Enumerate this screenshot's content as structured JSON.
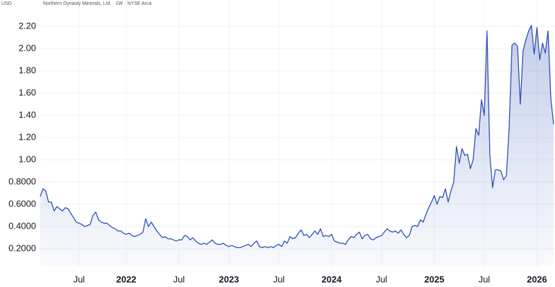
{
  "chart_data": {
    "type": "area",
    "title": "Northern Dynasty Minerals, Ltd. · 1W · NYSE Arca",
    "y_label": "USD",
    "grid": true,
    "categories": [
      null,
      null,
      null,
      null,
      null,
      null,
      null,
      null,
      null,
      null,
      null,
      null,
      null,
      null,
      "Jul",
      null,
      null,
      null,
      null,
      null,
      null,
      null,
      null,
      null,
      null,
      null,
      null,
      null,
      null,
      null,
      null,
      "2022",
      null,
      null,
      null,
      null,
      null,
      null,
      null,
      null,
      null,
      null,
      null,
      null,
      null,
      null,
      null,
      null,
      null,
      null,
      "Jul",
      null,
      null,
      null,
      null,
      null,
      null,
      null,
      null,
      null,
      null,
      null,
      null,
      null,
      null,
      null,
      null,
      null,
      "2023",
      null,
      null,
      null,
      null,
      null,
      null,
      null,
      null,
      null,
      null,
      null,
      null,
      null,
      null,
      null,
      null,
      null,
      "Jul",
      null,
      null,
      null,
      null,
      null,
      null,
      null,
      null,
      null,
      null,
      null,
      null,
      null,
      null,
      null,
      null,
      null,
      null,
      "2024",
      null,
      null,
      null,
      null,
      null,
      null,
      null,
      null,
      null,
      null,
      null,
      null,
      null,
      null,
      null,
      null,
      null,
      "Jul",
      null,
      null,
      null,
      null,
      null,
      null,
      null,
      null,
      null,
      null,
      null,
      null,
      null,
      null,
      null,
      null,
      null,
      null,
      "2025",
      null,
      null,
      null,
      null,
      null,
      null,
      null,
      null,
      null,
      null,
      null,
      null,
      null,
      null,
      null,
      null,
      null,
      "Jul",
      null,
      null,
      null,
      null,
      null,
      null,
      null,
      null,
      null,
      null,
      null,
      null,
      null,
      null,
      null,
      null,
      null,
      null,
      "2026",
      null,
      null,
      null,
      null,
      null,
      null
    ],
    "series": [
      {
        "name": "Northern Dynasty Minerals",
        "color": "#2a4fb5",
        "values": [
          0.67,
          0.74,
          0.72,
          0.62,
          0.62,
          0.54,
          0.58,
          0.56,
          0.54,
          0.57,
          0.56,
          0.52,
          0.48,
          0.44,
          0.43,
          0.42,
          0.4,
          0.41,
          0.42,
          0.5,
          0.53,
          0.46,
          0.44,
          0.43,
          0.43,
          0.41,
          0.39,
          0.38,
          0.36,
          0.36,
          0.34,
          0.33,
          0.34,
          0.32,
          0.31,
          0.32,
          0.33,
          0.35,
          0.47,
          0.4,
          0.44,
          0.4,
          0.36,
          0.33,
          0.3,
          0.31,
          0.29,
          0.29,
          0.28,
          0.27,
          0.28,
          0.28,
          0.32,
          0.31,
          0.28,
          0.3,
          0.27,
          0.25,
          0.24,
          0.25,
          0.24,
          0.26,
          0.28,
          0.25,
          0.24,
          0.24,
          0.25,
          0.23,
          0.22,
          0.23,
          0.22,
          0.21,
          0.21,
          0.22,
          0.23,
          0.24,
          0.22,
          0.25,
          0.27,
          0.22,
          0.21,
          0.22,
          0.21,
          0.22,
          0.21,
          0.23,
          0.24,
          0.22,
          0.27,
          0.25,
          0.31,
          0.29,
          0.3,
          0.34,
          0.37,
          0.32,
          0.33,
          0.3,
          0.33,
          0.36,
          0.33,
          0.38,
          0.31,
          0.32,
          0.31,
          0.33,
          0.27,
          0.26,
          0.25,
          0.25,
          0.24,
          0.28,
          0.31,
          0.3,
          0.33,
          0.35,
          0.29,
          0.32,
          0.33,
          0.29,
          0.28,
          0.3,
          0.31,
          0.32,
          0.35,
          0.38,
          0.36,
          0.35,
          0.36,
          0.34,
          0.37,
          0.33,
          0.3,
          0.32,
          0.4,
          0.41,
          0.4,
          0.46,
          0.44,
          0.51,
          0.57,
          0.62,
          0.68,
          0.6,
          0.67,
          0.66,
          0.74,
          0.62,
          0.72,
          0.8,
          1.12,
          0.97,
          1.1,
          1.04,
          1.05,
          0.92,
          1.0,
          1.28,
          1.22,
          1.54,
          1.4,
          2.16,
          1.05,
          0.75,
          0.91,
          0.91,
          0.9,
          0.82,
          0.86,
          1.3,
          2.03,
          2.05,
          2.02,
          1.5,
          1.98,
          2.08,
          2.16,
          2.21,
          1.95,
          2.19,
          1.9,
          2.05,
          1.96,
          2.16,
          1.55,
          1.32
        ]
      }
    ],
    "ylim": [
      0.05,
      2.35
    ],
    "yticks": [
      {
        "value": 0.2,
        "label": "0.2000"
      },
      {
        "value": 0.4,
        "label": "0.4000"
      },
      {
        "value": 0.6,
        "label": "0.6000"
      },
      {
        "value": 0.8,
        "label": "0.8000"
      },
      {
        "value": 1.0,
        "label": "1.00"
      },
      {
        "value": 1.2,
        "label": "1.20"
      },
      {
        "value": 1.4,
        "label": "1.40"
      },
      {
        "value": 1.6,
        "label": "1.60"
      },
      {
        "value": 1.8,
        "label": "1.80"
      },
      {
        "value": 2.0,
        "label": "2.00"
      },
      {
        "value": 2.2,
        "label": "2.20"
      }
    ]
  }
}
